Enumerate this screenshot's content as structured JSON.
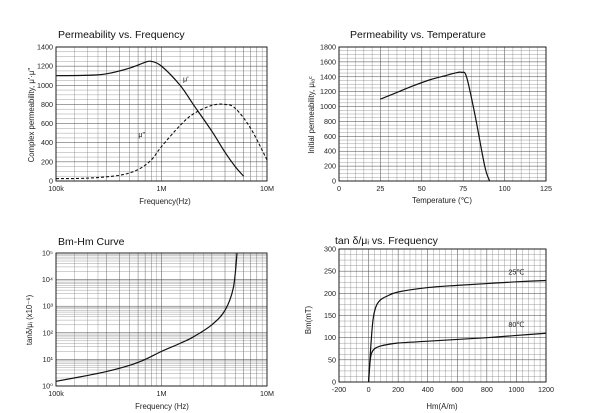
{
  "chart_data": [
    {
      "id": "perm-freq",
      "type": "line",
      "title": "Permeability vs. Frequency",
      "xlabel": "Frequency(Hz)",
      "ylabel": "Complex permeability, μ'·μ''",
      "xscale": "log",
      "xlim": [
        100000,
        10000000
      ],
      "ylim": [
        0,
        1400
      ],
      "x_ticks": [
        "100k",
        "1M",
        "10M"
      ],
      "y_ticks": [
        "0",
        "200",
        "400",
        "600",
        "800",
        "1000",
        "1200",
        "1400"
      ],
      "grid": true,
      "series": [
        {
          "name": "μ'",
          "style": "solid",
          "x": [
            100000,
            200000,
            300000,
            500000,
            700000,
            800000,
            1000000,
            1500000,
            2000000,
            3000000,
            4000000,
            5000000,
            6000000
          ],
          "y": [
            1100,
            1105,
            1120,
            1180,
            1240,
            1250,
            1200,
            1000,
            800,
            520,
            300,
            150,
            50
          ]
        },
        {
          "name": "μ''",
          "style": "dashed",
          "x": [
            100000,
            200000,
            400000,
            600000,
            800000,
            1000000,
            1500000,
            2000000,
            3000000,
            4000000,
            5000000,
            7000000,
            10000000
          ],
          "y": [
            25,
            30,
            60,
            120,
            220,
            360,
            580,
            700,
            790,
            800,
            760,
            550,
            220
          ]
        }
      ]
    },
    {
      "id": "perm-temp",
      "type": "line",
      "title": "Permeability vs. Temperature",
      "xlabel": "Temperature (℃)",
      "ylabel": "Initial permeability, μᵢₐᶜ",
      "xlim": [
        0,
        125
      ],
      "ylim": [
        0,
        1800
      ],
      "x_ticks": [
        "0",
        "25",
        "50",
        "75",
        "100",
        "125"
      ],
      "y_ticks": [
        "0",
        "200",
        "400",
        "600",
        "800",
        "1000",
        "1200",
        "1400",
        "1600",
        "1800"
      ],
      "grid": true,
      "series": [
        {
          "name": "",
          "style": "solid",
          "x": [
            25,
            35,
            45,
            55,
            65,
            70,
            74,
            77,
            82,
            88,
            91
          ],
          "y": [
            1100,
            1190,
            1280,
            1360,
            1420,
            1450,
            1460,
            1400,
            900,
            200,
            0
          ]
        }
      ]
    },
    {
      "id": "bm-hm-loss",
      "type": "line",
      "title": "Bm-Hm Curve",
      "xlabel": "Frequency (Hz)",
      "ylabel": "tanδ/μᵢ (x10⁻⁶)",
      "xscale": "log",
      "yscale": "log",
      "xlim": [
        100000,
        10000000
      ],
      "ylim": [
        1,
        100000
      ],
      "x_ticks": [
        "100k",
        "1M",
        "10M"
      ],
      "y_ticks": [
        "10⁰",
        "10¹",
        "10²",
        "10³",
        "10⁴",
        "10⁵"
      ],
      "grid": true,
      "series": [
        {
          "name": "",
          "style": "solid",
          "x": [
            100000,
            200000,
            300000,
            500000,
            700000,
            1000000,
            1500000,
            2000000,
            3000000,
            4000000,
            4800000,
            5200000
          ],
          "y": [
            1.5,
            2.5,
            3.5,
            6,
            10,
            20,
            40,
            70,
            200,
            700,
            5000,
            100000
          ]
        }
      ]
    },
    {
      "id": "bm-hm",
      "type": "line",
      "title": "tan δ/μᵢ vs. Frequency",
      "xlabel": "Hm(A/m)",
      "ylabel": "Bm(mT)",
      "xlim": [
        -200,
        1200
      ],
      "ylim": [
        0,
        300
      ],
      "x_ticks": [
        "-200",
        "0",
        "200",
        "400",
        "600",
        "800",
        "1000",
        "1200"
      ],
      "y_ticks": [
        "0",
        "50",
        "100",
        "150",
        "200",
        "250",
        "300"
      ],
      "grid": true,
      "series": [
        {
          "name": "25℃",
          "style": "solid",
          "x": [
            0,
            15,
            30,
            50,
            80,
            120,
            200,
            400,
            600,
            800,
            1000,
            1200
          ],
          "y": [
            0,
            80,
            140,
            170,
            185,
            193,
            203,
            213,
            218,
            222,
            226,
            229
          ]
        },
        {
          "name": "80℃",
          "style": "solid",
          "x": [
            0,
            10,
            20,
            40,
            70,
            120,
            200,
            400,
            600,
            800,
            1000,
            1200
          ],
          "y": [
            0,
            45,
            65,
            75,
            80,
            84,
            88,
            92,
            96,
            100,
            105,
            110
          ]
        }
      ]
    }
  ]
}
